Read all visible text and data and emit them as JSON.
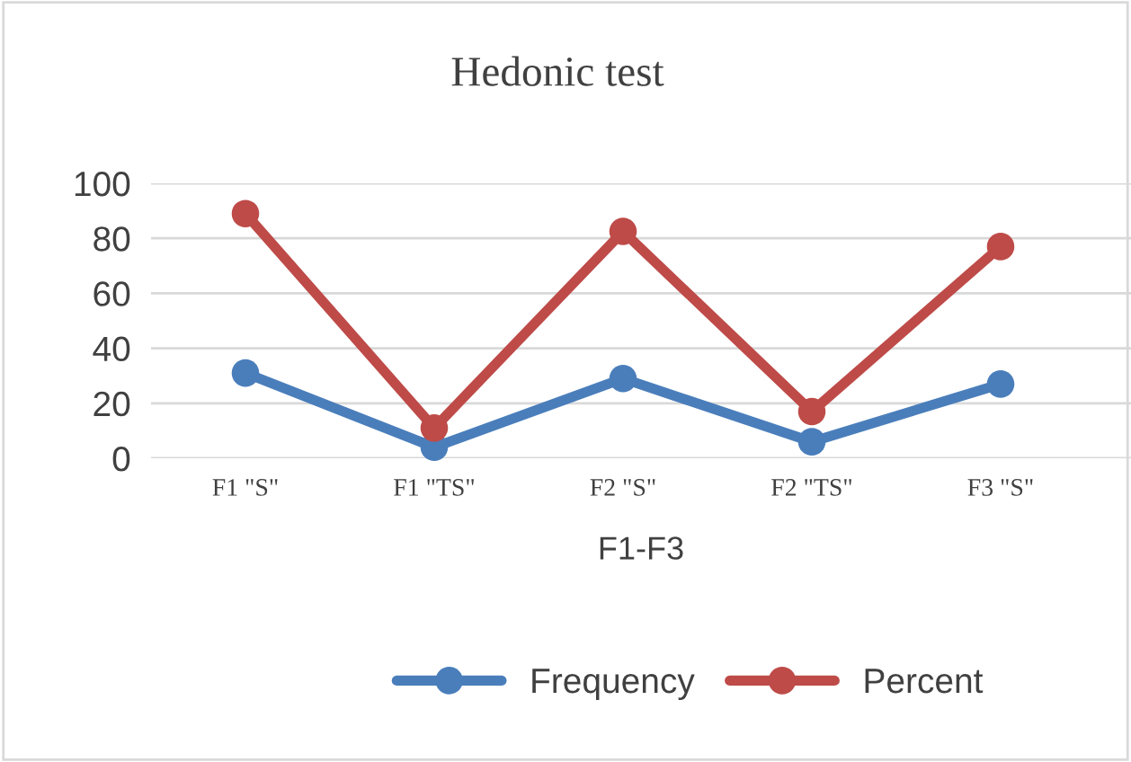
{
  "chart_data": {
    "type": "line",
    "title": "Hedonic test",
    "xlabel": "F1-F3",
    "categories": [
      "F1 \"S\"",
      "F1 \"TS\"",
      "F2 \"S\"",
      "F2 \"TS\"",
      "F3 \"S\""
    ],
    "series": [
      {
        "name": "Frequency",
        "color": "#4a7ebb",
        "values": [
          31,
          4,
          29,
          6,
          27
        ]
      },
      {
        "name": "Percent",
        "color": "#be4b48",
        "values": [
          89,
          11,
          82.5,
          17,
          77
        ]
      }
    ],
    "ylim": [
      0,
      100
    ],
    "yticks": [
      0,
      20,
      40,
      60,
      80,
      100
    ],
    "grid": "y",
    "legend": "bottom",
    "marker": "circle",
    "line_style": "solid"
  }
}
